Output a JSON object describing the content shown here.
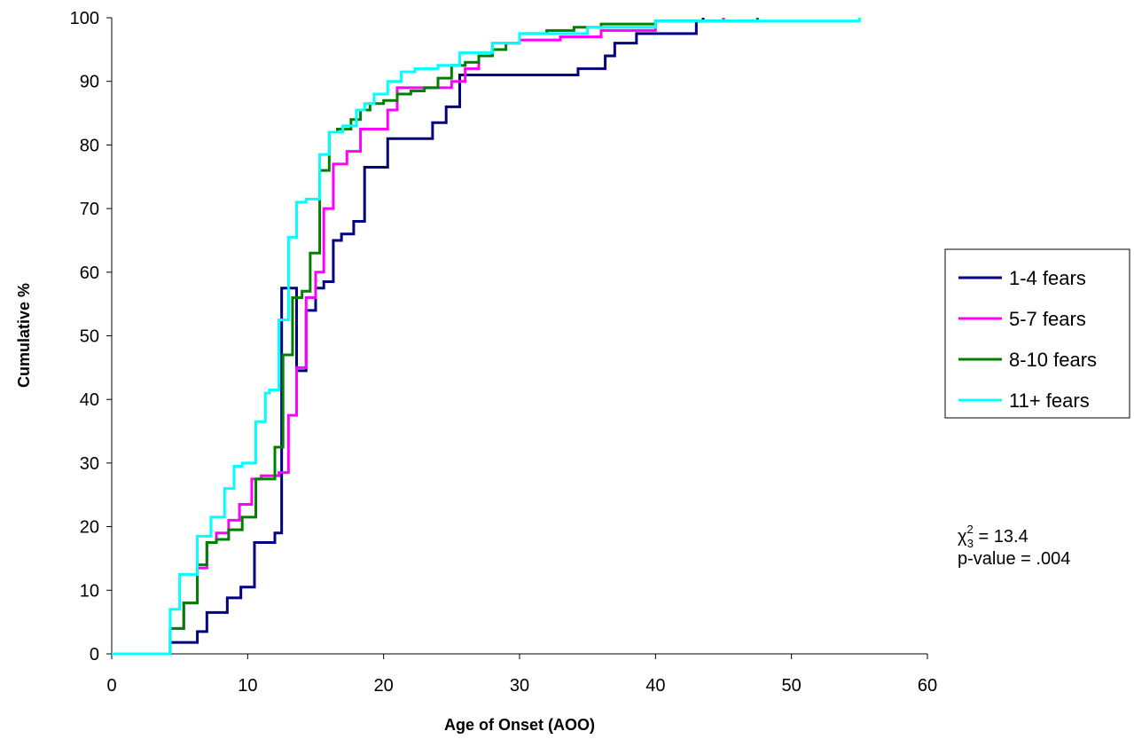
{
  "chart_data": {
    "type": "line",
    "title": "",
    "xlabel": "Age of Onset (AOO)",
    "ylabel": "Cumulative %",
    "xlim": [
      0,
      60
    ],
    "ylim": [
      0,
      100
    ],
    "xticks": [
      0,
      10,
      20,
      30,
      40,
      50,
      60
    ],
    "yticks": [
      0,
      10,
      20,
      30,
      40,
      50,
      60,
      70,
      80,
      90,
      100
    ],
    "grid": false,
    "legend_position": "right",
    "series": [
      {
        "name": "1-4 fears",
        "color": "#000080",
        "step": true,
        "x": [
          0,
          4.3,
          4.6,
          6.3,
          7,
          7.5,
          8.5,
          9.5,
          10.5,
          11,
          12,
          12.5,
          13.6,
          14.3,
          15,
          15.6,
          16.3,
          16.9,
          17.8,
          18.6,
          20.3,
          22.6,
          23.6,
          24.6,
          25.6,
          32.2,
          34.3,
          35.3,
          36.3,
          37,
          38.6,
          42.3,
          43,
          43.5
        ],
        "y": [
          0,
          1.8,
          1.8,
          3.5,
          6.5,
          6.5,
          8.8,
          10.5,
          17.5,
          17.5,
          19,
          57.5,
          44.5,
          54,
          57.5,
          58.5,
          65,
          66,
          68,
          76.5,
          81,
          81,
          83.5,
          86,
          91,
          91,
          92,
          92,
          94,
          96,
          97.5,
          97.5,
          99.5,
          100
        ]
      },
      {
        "name": "5-7 fears",
        "color": "#ff00ff",
        "step": true,
        "x": [
          0,
          4.3,
          5.3,
          6.3,
          7,
          7.7,
          8.6,
          9.4,
          10.3,
          11,
          12.3,
          13,
          13.6,
          14.3,
          15,
          15.6,
          16.3,
          17.3,
          18.3,
          19,
          20.3,
          21,
          22,
          25,
          26,
          27,
          28,
          30,
          33,
          36,
          40,
          45
        ],
        "y": [
          0,
          4,
          8,
          13.5,
          17.5,
          19,
          21,
          23.5,
          27.5,
          28,
          28.5,
          37.5,
          45,
          56,
          60,
          70,
          77,
          79,
          82.5,
          82.5,
          85.5,
          89,
          89,
          90,
          92,
          94,
          96,
          96.5,
          97,
          98,
          99.5,
          100
        ]
      },
      {
        "name": "8-10 fears",
        "color": "#008000",
        "step": true,
        "x": [
          0,
          4.3,
          5.3,
          6.3,
          7,
          7.7,
          8.6,
          9.6,
          10.6,
          11.3,
          12,
          12.6,
          13.3,
          14,
          14.6,
          15.3,
          16,
          16.6,
          17.6,
          18.3,
          19,
          20,
          21,
          22,
          23,
          24,
          25,
          26,
          27,
          28,
          29,
          30,
          32,
          34,
          36,
          40,
          47.5
        ],
        "y": [
          0,
          4,
          8,
          14,
          17.5,
          18,
          19.5,
          21.5,
          27.5,
          27.5,
          32.5,
          47,
          56,
          57,
          63,
          76,
          82,
          82.5,
          84,
          85.5,
          86.5,
          87,
          88,
          88.5,
          89,
          90.5,
          92.5,
          93,
          94,
          95,
          96,
          97.5,
          98,
          98.5,
          99,
          99.5,
          100
        ]
      },
      {
        "name": "11+ fears",
        "color": "#00ffff",
        "step": true,
        "x": [
          0,
          4.3,
          5,
          5.6,
          6.3,
          7.3,
          8.3,
          9,
          9.6,
          10.6,
          11.3,
          11.6,
          12.3,
          13,
          13.6,
          14.3,
          15.3,
          16,
          17,
          18,
          18.6,
          19.3,
          20.3,
          21.3,
          22.3,
          24,
          25.6,
          28,
          30,
          35,
          40,
          45,
          55
        ],
        "y": [
          0,
          7,
          12.5,
          12.5,
          18.5,
          21.5,
          26,
          29.5,
          30,
          36.5,
          41,
          41.5,
          52.5,
          65.5,
          71,
          71.5,
          78.5,
          82,
          83,
          85.5,
          86.5,
          88,
          90,
          91.5,
          92,
          92.5,
          94.5,
          96,
          97.5,
          98.5,
          99.5,
          99.5,
          100
        ]
      }
    ],
    "annotation": {
      "chi_symbol": "χ",
      "chi_sup": "2",
      "chi_sub": "3",
      "chi_value": " = 13.4",
      "p_line": "p-value = .004"
    }
  }
}
